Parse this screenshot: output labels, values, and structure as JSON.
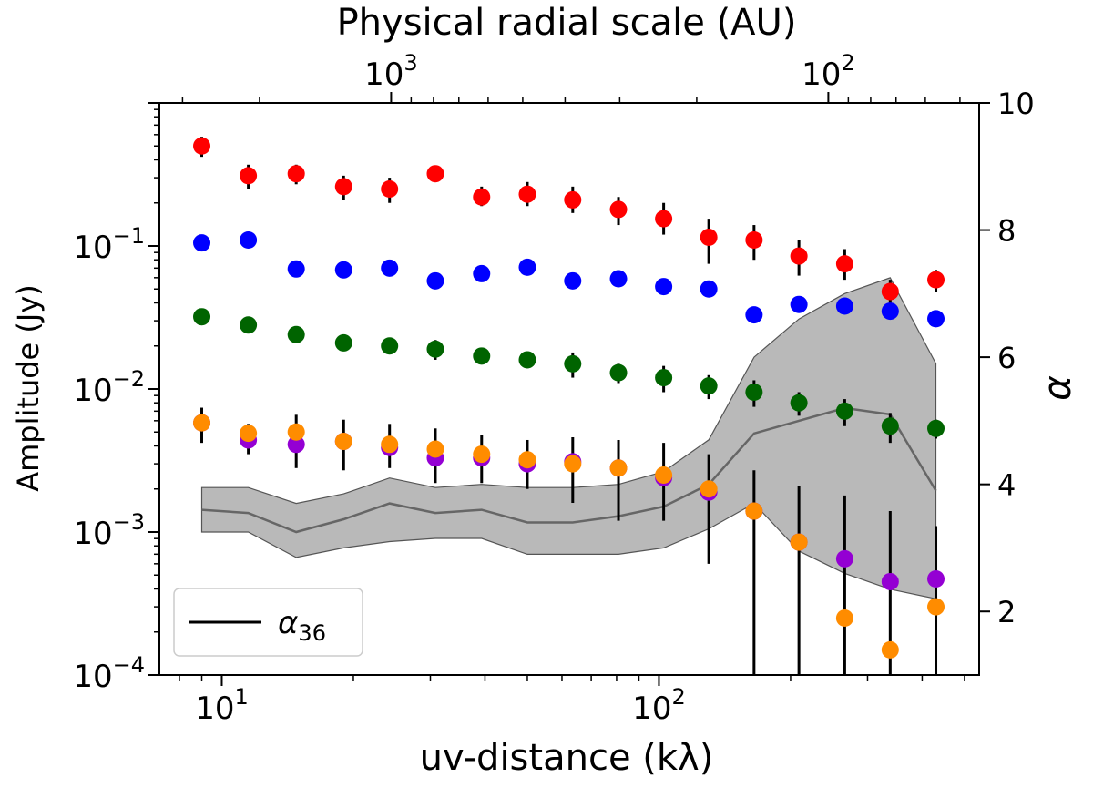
{
  "chart_data": {
    "type": "scatter",
    "top_xlabel": "Physical radial scale (AU)",
    "xlabel": "uv-distance (kλ)",
    "ylabel": "Amplitude (Jy)",
    "y2label": "α",
    "x_scale": "log",
    "y_scale": "log",
    "xlim": [
      7.2,
      540
    ],
    "ylim": [
      0.0001,
      1.0
    ],
    "y2lim": [
      1.0,
      10.0
    ],
    "x_ticks": [
      {
        "value": 10,
        "base": "10",
        "exp": "1"
      },
      {
        "value": 100,
        "base": "10",
        "exp": "2"
      }
    ],
    "y_ticks": [
      {
        "value": 0.1,
        "base": "10",
        "exp": "−1"
      },
      {
        "value": 0.01,
        "base": "10",
        "exp": "−2"
      },
      {
        "value": 0.001,
        "base": "10",
        "exp": "−3"
      },
      {
        "value": 0.0001,
        "base": "10",
        "exp": "−4"
      }
    ],
    "y2_ticks": [
      {
        "value": 2,
        "label": "2"
      },
      {
        "value": 4,
        "label": "4"
      },
      {
        "value": 6,
        "label": "6"
      },
      {
        "value": 8,
        "label": "8"
      },
      {
        "value": 10,
        "label": "10"
      }
    ],
    "top_ticks": [
      {
        "au": 1000,
        "x": 24.4,
        "base": "10",
        "exp": "3"
      },
      {
        "au": 100,
        "x": 244,
        "base": "10",
        "exp": "2"
      }
    ],
    "x": [
      9.0,
      11.5,
      14.8,
      19.0,
      24.2,
      30.8,
      39.3,
      50.0,
      63.5,
      80.8,
      102.5,
      130.0,
      165.0,
      209.0,
      266.0,
      338.0,
      430.0
    ],
    "series": [
      {
        "color": "#ff0000",
        "values": [
          0.5,
          0.31,
          0.32,
          0.26,
          0.25,
          0.32,
          0.22,
          0.23,
          0.21,
          0.18,
          0.155,
          0.115,
          0.11,
          0.085,
          0.075,
          0.048,
          0.058
        ],
        "err_low": [
          0.42,
          0.25,
          0.27,
          0.21,
          0.2,
          0.28,
          0.19,
          0.19,
          0.17,
          0.14,
          0.12,
          0.075,
          0.08,
          0.062,
          0.058,
          0.038,
          0.048
        ],
        "err_high": [
          0.58,
          0.37,
          0.37,
          0.31,
          0.3,
          0.36,
          0.26,
          0.28,
          0.26,
          0.22,
          0.2,
          0.155,
          0.14,
          0.11,
          0.095,
          0.058,
          0.068
        ]
      },
      {
        "color": "#0000ff",
        "values": [
          0.105,
          0.11,
          0.069,
          0.068,
          0.07,
          0.057,
          0.064,
          0.071,
          0.057,
          0.059,
          0.052,
          0.05,
          0.033,
          0.039,
          0.038,
          0.035,
          0.031
        ],
        "err_low": [
          0.1,
          0.105,
          0.065,
          0.064,
          0.066,
          0.052,
          0.06,
          0.067,
          0.05,
          0.055,
          0.047,
          0.046,
          0.029,
          0.035,
          0.035,
          0.032,
          0.029
        ],
        "err_high": [
          0.11,
          0.115,
          0.073,
          0.072,
          0.074,
          0.062,
          0.068,
          0.075,
          0.064,
          0.063,
          0.057,
          0.054,
          0.037,
          0.043,
          0.041,
          0.038,
          0.033
        ]
      },
      {
        "color": "#006400",
        "values": [
          0.032,
          0.028,
          0.024,
          0.021,
          0.02,
          0.019,
          0.017,
          0.016,
          0.015,
          0.013,
          0.012,
          0.0105,
          0.0095,
          0.008,
          0.007,
          0.0055,
          0.0053
        ],
        "err_low": [
          0.03,
          0.026,
          0.021,
          0.019,
          0.018,
          0.016,
          0.015,
          0.014,
          0.012,
          0.011,
          0.0095,
          0.0085,
          0.0075,
          0.0065,
          0.0055,
          0.0042,
          0.0045
        ],
        "err_high": [
          0.034,
          0.03,
          0.027,
          0.023,
          0.022,
          0.022,
          0.019,
          0.018,
          0.018,
          0.015,
          0.0145,
          0.0125,
          0.0115,
          0.0095,
          0.0085,
          0.0068,
          0.0061
        ]
      },
      {
        "color": "#9400d3",
        "values": [
          0.0058,
          0.0044,
          0.0041,
          0.0043,
          0.0039,
          0.0033,
          0.0033,
          0.003,
          0.0031,
          0.0028,
          0.0024,
          0.0019,
          0.0014,
          0.00085,
          0.00065,
          0.00045,
          0.00047
        ],
        "err_low": [
          0.0042,
          0.0035,
          0.0028,
          0.0027,
          0.0028,
          0.0022,
          0.0022,
          0.002,
          0.0016,
          0.0012,
          0.0012,
          0.0006,
          0.0001,
          0.0001,
          0.0001,
          0.0001,
          0.0001
        ],
        "err_high": [
          0.0074,
          0.0057,
          0.0066,
          0.0061,
          0.0057,
          0.0053,
          0.0048,
          0.0044,
          0.0046,
          0.0044,
          0.0042,
          0.0035,
          0.0027,
          0.0021,
          0.0018,
          0.0014,
          0.0011
        ]
      },
      {
        "color": "#ff8c00",
        "values": [
          0.0058,
          0.0049,
          0.005,
          0.0043,
          0.0041,
          0.0038,
          0.0035,
          0.0032,
          0.003,
          0.0028,
          0.0025,
          0.002,
          0.0014,
          0.00085,
          0.00025,
          0.00015,
          0.0003
        ]
      }
    ],
    "alpha_band": {
      "name": "α₃₆",
      "legend_text": "α",
      "legend_subscript": "36",
      "legend_location": "lower left",
      "x": [
        9.0,
        11.5,
        14.8,
        19.0,
        24.2,
        30.8,
        39.3,
        50.0,
        63.5,
        80.8,
        102.5,
        130.0,
        165.0,
        209.0,
        266.0,
        338.0,
        430.0
      ],
      "alpha": [
        3.6,
        3.55,
        3.25,
        3.45,
        3.7,
        3.55,
        3.6,
        3.4,
        3.4,
        3.5,
        3.65,
        4.0,
        4.8,
        5.0,
        5.2,
        5.1,
        3.9
      ],
      "lower": [
        3.25,
        3.25,
        2.85,
        3.0,
        3.1,
        3.15,
        3.15,
        2.9,
        2.9,
        2.9,
        3.0,
        3.3,
        3.7,
        2.95,
        2.6,
        2.35,
        2.2
      ],
      "upper": [
        3.95,
        3.95,
        3.7,
        3.85,
        4.1,
        3.95,
        4.0,
        3.95,
        3.95,
        4.0,
        4.2,
        4.7,
        6.0,
        6.6,
        7.0,
        7.25,
        5.9
      ]
    }
  }
}
